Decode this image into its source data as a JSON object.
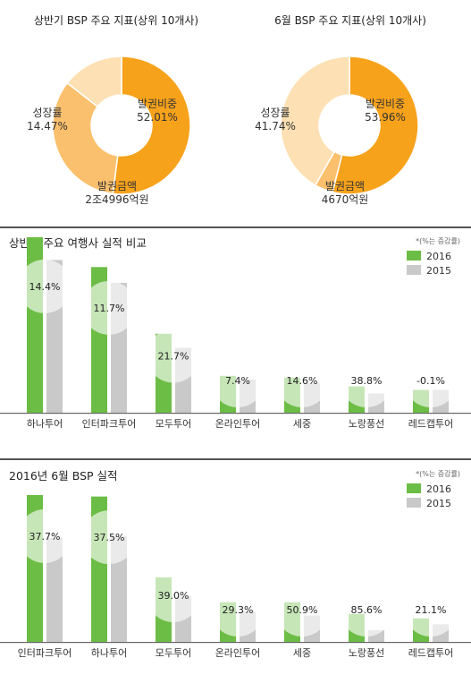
{
  "donut1_title": "상반기 BSP 주요 지표(상위 10개사)",
  "donut2_title": "6월 BSP 주요 지표(상위 10개사)",
  "section1_title": "상반기 주요 여행사 실적 비교",
  "section2_title": "2016년 6월 BSP 실적",
  "note": "*(%는 증감률)",
  "colors": {
    "orange": "#f7a21b",
    "light_orange": "#fbc06d",
    "peach": "#fde0b3",
    "green": "#6cbd45",
    "gray": "#c9c9c9"
  },
  "chart_data": [
    {
      "type": "pie",
      "title": "상반기 BSP 주요 지표(상위 10개사)",
      "slices": [
        {
          "name": "발권비중",
          "label": "52.01%",
          "value": 52.01,
          "color": "#f7a21b"
        },
        {
          "name": "발권금액",
          "label": "2조4996억원",
          "value": 33.52,
          "color": "#fbc06d"
        },
        {
          "name": "성장률",
          "label": "14.47%",
          "value": 14.47,
          "color": "#fde0b3"
        }
      ]
    },
    {
      "type": "pie",
      "title": "6월 BSP 주요 지표(상위 10개사)",
      "slices": [
        {
          "name": "발권비중",
          "label": "53.96%",
          "value": 53.96,
          "color": "#f7a21b"
        },
        {
          "name": "발권금액",
          "label": "4670억원",
          "value": 4.3,
          "color": "#fbc06d"
        },
        {
          "name": "성장률",
          "label": "41.74%",
          "value": 41.74,
          "color": "#fde0b3"
        }
      ]
    },
    {
      "type": "bar",
      "title": "상반기 주요 여행사 실적 비교",
      "categories": [
        "하나투어",
        "인터파크투어",
        "모두투어",
        "온라인투어",
        "세중",
        "노랑풍선",
        "레드캡투어"
      ],
      "series": [
        {
          "name": "2016",
          "values": [
            100,
            83,
            45,
            21,
            20,
            15,
            13
          ]
        },
        {
          "name": "2015",
          "values": [
            87,
            74,
            37,
            19,
            17,
            11,
            13
          ]
        }
      ],
      "labels": [
        "14.4%",
        "11.7%",
        "21.7%",
        "7.4%",
        "14.6%",
        "38.8%",
        "-0.1%"
      ]
    },
    {
      "type": "bar",
      "title": "2016년 6월 BSP 실적",
      "categories": [
        "인터파크투어",
        "하나투어",
        "모두투어",
        "온라인투어",
        "세중",
        "노랑풍선",
        "레드캡투어"
      ],
      "series": [
        {
          "name": "2016",
          "values": [
            100,
            99,
            44,
            27,
            27,
            19,
            16
          ]
        },
        {
          "name": "2015",
          "values": [
            71,
            72,
            31,
            21,
            18,
            8,
            12
          ]
        }
      ],
      "labels": [
        "37.7%",
        "37.5%",
        "39.0%",
        "29.3%",
        "50.9%",
        "85.6%",
        "21.1%"
      ]
    }
  ]
}
